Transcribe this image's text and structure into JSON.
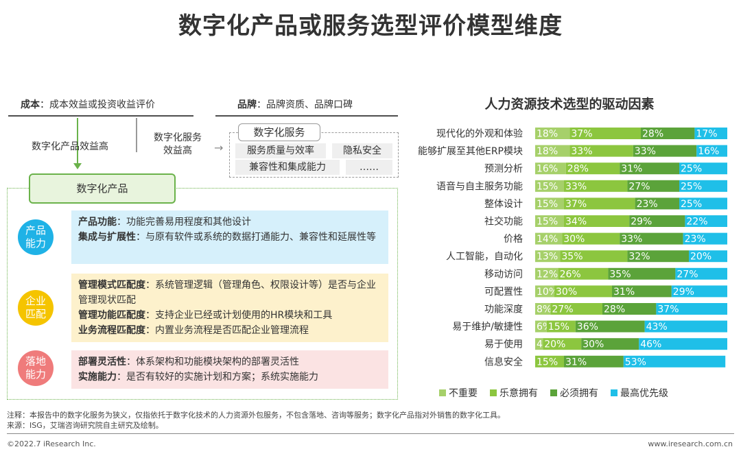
{
  "title": "数字化产品或服务选型评价模型维度",
  "left": {
    "cost_label": "成本",
    "cost_text": "：成本效益或投资收益评价",
    "brand_label": "品牌",
    "brand_text": "：品牌资质、品牌口碑",
    "product_benefit": "数字化产品效益高",
    "service_benefit_1": "数字化服务",
    "service_benefit_2": "效益高",
    "service_box_title": "数字化服务",
    "service_chips": [
      "服务质量与效率",
      "隐私安全",
      "兼容性和集成能力",
      "……"
    ],
    "product_box_title": "数字化产品",
    "categories": [
      {
        "circle": [
          "产品",
          "能力"
        ],
        "lines": [
          {
            "bold": "产品功能",
            "text": "：功能完善易用程度和其他设计"
          },
          {
            "bold": "集成与扩展性",
            "text": "：与原有软件或系统的数据打通能力、兼容性和延展性等"
          }
        ]
      },
      {
        "circle": [
          "企业",
          "匹配"
        ],
        "lines": [
          {
            "bold": "管理模式匹配度",
            "text": "：系统管理逻辑（管理角色、权限设计等）是否与企业管理现状匹配"
          },
          {
            "bold": "管理功能匹配度",
            "text": "：支持企业已经或计划使用的HR模块和工具"
          },
          {
            "bold": "业务流程匹配度",
            "text": "：内置业务流程是否匹配企业管理流程"
          }
        ]
      },
      {
        "circle": [
          "落地",
          "能力"
        ],
        "lines": [
          {
            "bold": "部署灵活性",
            "text": "：体系架构和功能模块架构的部署灵活性"
          },
          {
            "bold": "实施能力",
            "text": "：是否有较好的实施计划和方案；系统实施能力"
          }
        ]
      }
    ]
  },
  "colors": {
    "s1": "#a6d06a",
    "s2": "#8cc63f",
    "s3": "#5ba33a",
    "s4": "#1fbfe8",
    "c1": "#1fb2e6",
    "c2": "#f5c400",
    "c3": "#ef7b7b",
    "p1": "#d6f0fb",
    "p2": "#fdf1cc",
    "p3": "#fbe3e3"
  },
  "chart_data": {
    "type": "bar",
    "stacked": "100%",
    "orientation": "horizontal",
    "title": "人力资源技术选型的驱动因素",
    "categories": [
      "现代化的外观和体验",
      "能够扩展至其他ERP模块",
      "预测分析",
      "语音与自主服务功能",
      "整体设计",
      "社交功能",
      "价格",
      "人工智能，自动化",
      "移动访问",
      "可配置性",
      "功能深度",
      "易于维护/敏捷性",
      "易于使用",
      "信息安全"
    ],
    "series": [
      {
        "name": "不重要",
        "values": [
          18,
          18,
          16,
          15,
          15,
          15,
          14,
          13,
          12,
          10,
          8,
          6,
          4,
          0
        ]
      },
      {
        "name": "乐意拥有",
        "values": [
          37,
          33,
          28,
          33,
          37,
          34,
          30,
          35,
          26,
          30,
          27,
          15,
          20,
          15
        ]
      },
      {
        "name": "必须拥有",
        "values": [
          28,
          33,
          31,
          27,
          23,
          29,
          33,
          32,
          35,
          31,
          28,
          36,
          30,
          31
        ]
      },
      {
        "name": "最高优先级",
        "values": [
          17,
          16,
          25,
          25,
          25,
          22,
          23,
          20,
          27,
          29,
          37,
          43,
          46,
          53
        ]
      }
    ],
    "value_suffix": "%",
    "legend_position": "bottom"
  },
  "notes": {
    "note": "注释：本报告中的数字化服务为狭义，仅指依托于数字化技术的人力资源外包服务，不包含落地、咨询等服务；数字化产品指对外销售的数字化工具。",
    "source": "来源：ISG，艾瑞咨询研究院自主研究及绘制。"
  },
  "footer": {
    "left": "©2022.7 iResearch Inc.",
    "right": "www.iresearch.com.cn"
  }
}
